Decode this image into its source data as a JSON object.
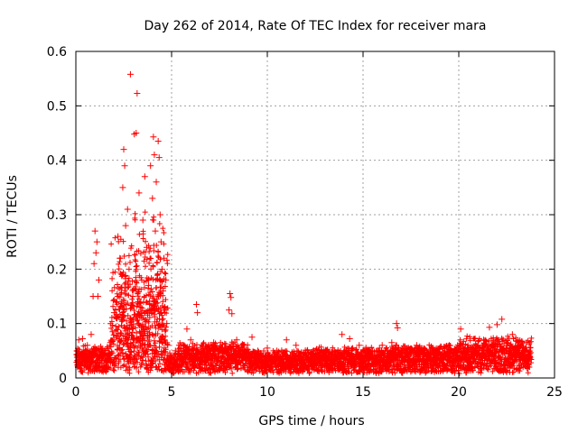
{
  "chart_data": {
    "type": "scatter",
    "title": "Day 262 of 2014, Rate Of TEC Index for receiver mara",
    "xlabel": "GPS time / hours",
    "ylabel": "ROTI / TECUs",
    "xlim": [
      0,
      25
    ],
    "ylim": [
      0,
      0.6
    ],
    "xticks": [
      "0",
      "5",
      "10",
      "15",
      "20",
      "25"
    ],
    "yticks": [
      "0",
      "0.1",
      "0.2",
      "0.3",
      "0.4",
      "0.5",
      "0.6"
    ],
    "xtick_values": [
      0,
      5,
      10,
      15,
      20,
      25
    ],
    "ytick_values": [
      0,
      0.1,
      0.2,
      0.3,
      0.4,
      0.5,
      0.6
    ],
    "grid": true,
    "marker": "+",
    "color": "#ff0000",
    "series": [
      {
        "name": "ROTI",
        "points": [
          [
            2.85,
            0.558
          ],
          [
            3.2,
            0.523
          ],
          [
            3.15,
            0.45
          ],
          [
            3.05,
            0.448
          ],
          [
            4.05,
            0.443
          ],
          [
            4.3,
            0.435
          ],
          [
            2.5,
            0.42
          ],
          [
            4.1,
            0.41
          ],
          [
            4.35,
            0.405
          ],
          [
            2.55,
            0.39
          ],
          [
            3.9,
            0.39
          ],
          [
            3.6,
            0.37
          ],
          [
            4.2,
            0.36
          ],
          [
            2.45,
            0.35
          ],
          [
            3.3,
            0.34
          ],
          [
            4.0,
            0.33
          ],
          [
            2.7,
            0.31
          ],
          [
            4.4,
            0.3
          ],
          [
            3.5,
            0.29
          ],
          [
            2.6,
            0.28
          ],
          [
            4.15,
            0.27
          ],
          [
            1.0,
            0.27
          ],
          [
            1.1,
            0.25
          ],
          [
            2.2,
            0.26
          ],
          [
            4.45,
            0.25
          ],
          [
            3.7,
            0.24
          ],
          [
            1.05,
            0.23
          ],
          [
            2.3,
            0.22
          ],
          [
            4.6,
            0.22
          ],
          [
            0.95,
            0.21
          ],
          [
            4.5,
            0.2
          ],
          [
            2.4,
            0.19
          ],
          [
            1.2,
            0.18
          ],
          [
            4.7,
            0.18
          ],
          [
            3.8,
            0.17
          ],
          [
            1.15,
            0.15
          ],
          [
            0.9,
            0.15
          ],
          [
            4.55,
            0.16
          ],
          [
            2.1,
            0.14
          ],
          [
            3.35,
            0.13
          ],
          [
            4.65,
            0.13
          ],
          [
            2.0,
            0.12
          ],
          [
            3.95,
            0.12
          ],
          [
            2.15,
            0.11
          ],
          [
            4.75,
            0.1
          ],
          [
            8.05,
            0.155
          ],
          [
            8.1,
            0.148
          ],
          [
            8.0,
            0.125
          ],
          [
            8.15,
            0.118
          ],
          [
            6.3,
            0.135
          ],
          [
            6.35,
            0.12
          ],
          [
            5.8,
            0.09
          ],
          [
            16.75,
            0.1
          ],
          [
            16.8,
            0.092
          ],
          [
            22.25,
            0.108
          ],
          [
            22.0,
            0.098
          ],
          [
            21.6,
            0.093
          ],
          [
            20.1,
            0.09
          ],
          [
            13.9,
            0.08
          ],
          [
            14.3,
            0.072
          ],
          [
            9.2,
            0.075
          ],
          [
            11.0,
            0.07
          ],
          [
            0.15,
            0.07
          ],
          [
            0.35,
            0.072
          ],
          [
            0.6,
            0.06
          ],
          [
            1.5,
            0.05
          ],
          [
            0.8,
            0.08
          ],
          [
            1.8,
            0.065
          ],
          [
            2.8,
            0.09
          ],
          [
            3.0,
            0.07
          ],
          [
            3.45,
            0.085
          ],
          [
            4.8,
            0.06
          ],
          [
            5.2,
            0.05
          ],
          [
            5.5,
            0.06
          ],
          [
            6.0,
            0.07
          ],
          [
            6.7,
            0.05
          ],
          [
            7.2,
            0.065
          ],
          [
            7.6,
            0.055
          ],
          [
            8.4,
            0.07
          ],
          [
            8.8,
            0.06
          ],
          [
            9.5,
            0.05
          ],
          [
            10.0,
            0.055
          ],
          [
            10.5,
            0.05
          ],
          [
            11.5,
            0.06
          ],
          [
            12.0,
            0.04
          ],
          [
            12.5,
            0.045
          ],
          [
            13.0,
            0.04
          ],
          [
            13.5,
            0.05
          ],
          [
            14.8,
            0.06
          ],
          [
            15.5,
            0.05
          ],
          [
            16.0,
            0.06
          ],
          [
            16.5,
            0.065
          ],
          [
            17.3,
            0.055
          ],
          [
            17.8,
            0.06
          ],
          [
            18.5,
            0.05
          ],
          [
            19.0,
            0.055
          ],
          [
            19.5,
            0.06
          ],
          [
            20.5,
            0.055
          ],
          [
            21.0,
            0.06
          ],
          [
            21.3,
            0.07
          ],
          [
            22.5,
            0.065
          ],
          [
            22.8,
            0.08
          ],
          [
            23.2,
            0.06
          ],
          [
            23.5,
            0.05
          ],
          [
            23.7,
            0.04
          ]
        ]
      }
    ]
  }
}
